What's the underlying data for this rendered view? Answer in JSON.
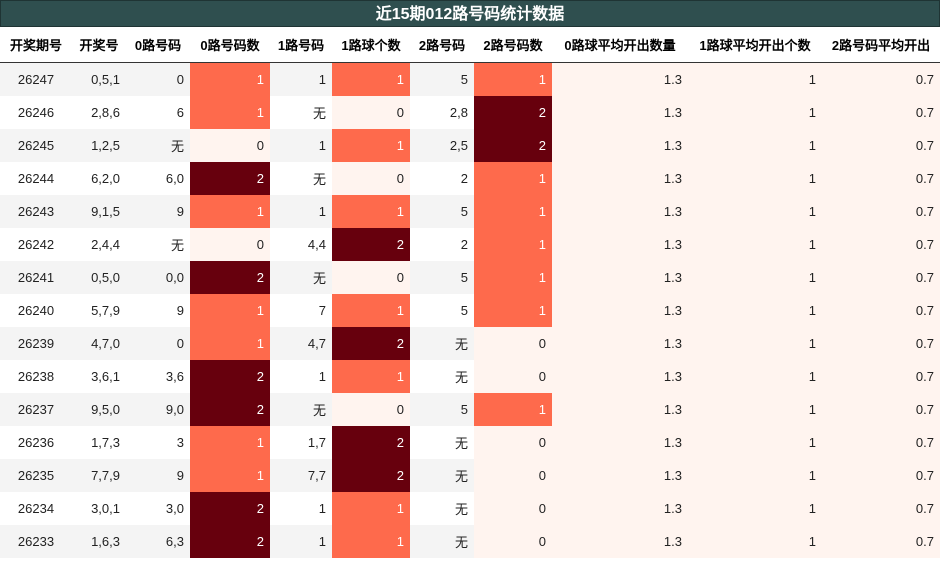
{
  "title": "近15期012路号码统计数据",
  "headers": [
    "开奖期号",
    "开奖号",
    "0路号码",
    "0路号码数",
    "1路号码",
    "1路球个数",
    "2路号码",
    "2路号码数",
    "0路球平均开出数量",
    "1路球平均开出个数",
    "2路号码平均开出"
  ],
  "rows": [
    [
      "26247",
      "0,5,1",
      "0",
      "1",
      "1",
      "1",
      "5",
      "1",
      "1.3",
      "1",
      "0.7"
    ],
    [
      "26246",
      "2,8,6",
      "6",
      "1",
      "无",
      "0",
      "2,8",
      "2",
      "1.3",
      "1",
      "0.7"
    ],
    [
      "26245",
      "1,2,5",
      "无",
      "0",
      "1",
      "1",
      "2,5",
      "2",
      "1.3",
      "1",
      "0.7"
    ],
    [
      "26244",
      "6,2,0",
      "6,0",
      "2",
      "无",
      "0",
      "2",
      "1",
      "1.3",
      "1",
      "0.7"
    ],
    [
      "26243",
      "9,1,5",
      "9",
      "1",
      "1",
      "1",
      "5",
      "1",
      "1.3",
      "1",
      "0.7"
    ],
    [
      "26242",
      "2,4,4",
      "无",
      "0",
      "4,4",
      "2",
      "2",
      "1",
      "1.3",
      "1",
      "0.7"
    ],
    [
      "26241",
      "0,5,0",
      "0,0",
      "2",
      "无",
      "0",
      "5",
      "1",
      "1.3",
      "1",
      "0.7"
    ],
    [
      "26240",
      "5,7,9",
      "9",
      "1",
      "7",
      "1",
      "5",
      "1",
      "1.3",
      "1",
      "0.7"
    ],
    [
      "26239",
      "4,7,0",
      "0",
      "1",
      "4,7",
      "2",
      "无",
      "0",
      "1.3",
      "1",
      "0.7"
    ],
    [
      "26238",
      "3,6,1",
      "3,6",
      "2",
      "1",
      "1",
      "无",
      "0",
      "1.3",
      "1",
      "0.7"
    ],
    [
      "26237",
      "9,5,0",
      "9,0",
      "2",
      "无",
      "0",
      "5",
      "1",
      "1.3",
      "1",
      "0.7"
    ],
    [
      "26236",
      "1,7,3",
      "3",
      "1",
      "1,7",
      "2",
      "无",
      "0",
      "1.3",
      "1",
      "0.7"
    ],
    [
      "26235",
      "7,7,9",
      "9",
      "1",
      "7,7",
      "2",
      "无",
      "0",
      "1.3",
      "1",
      "0.7"
    ],
    [
      "26234",
      "3,0,1",
      "3,0",
      "2",
      "1",
      "1",
      "无",
      "0",
      "1.3",
      "1",
      "0.7"
    ],
    [
      "26233",
      "1,6,3",
      "6,3",
      "2",
      "1",
      "1",
      "无",
      "0",
      "1.3",
      "1",
      "0.7"
    ]
  ],
  "heat_colors": {
    "0": "#fff4ef",
    "1": "#fe6a4c",
    "2": "#67000d"
  }
}
